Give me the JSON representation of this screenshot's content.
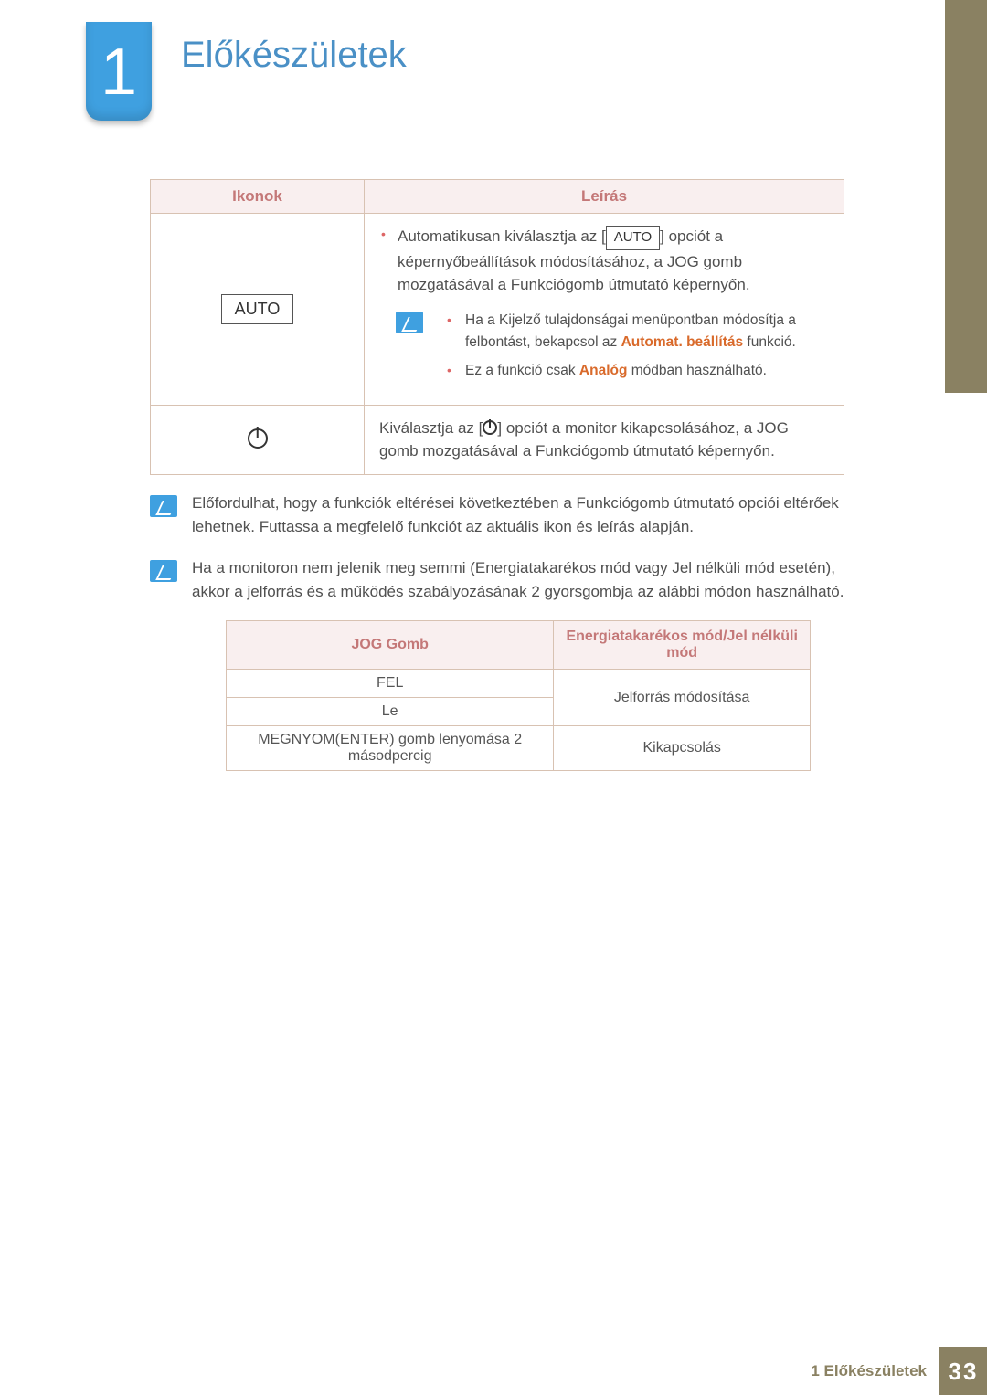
{
  "chapter": {
    "number": "1",
    "title": "Előkészületek"
  },
  "table1": {
    "headers": {
      "icons": "Ikonok",
      "desc": "Leírás"
    },
    "row_auto": {
      "icon_label": "AUTO",
      "main_before": "Automatikusan kiválasztja az [",
      "main_tag": "AUTO",
      "main_after": "] opciót a képernyőbeállítások módosításához, a JOG gomb mozgatásával a Funkciógomb útmutató képernyőn.",
      "sub1_before": "Ha a Kijelző tulajdonságai menüpontban módosítja a felbontást, bekapcsol az ",
      "sub1_hl": "Automat. beállítás",
      "sub1_after": " funkció.",
      "sub2_before": "Ez a funkció csak ",
      "sub2_hl": "Analóg",
      "sub2_after": " módban használható."
    },
    "row_power": {
      "before": "Kiválasztja az [",
      "after": "] opciót a monitor kikapcsolásához, a JOG gomb mozgatásával a Funkciógomb útmutató képernyőn."
    }
  },
  "note1": "Előfordulhat, hogy a funkciók eltérései következtében a Funkciógomb útmutató opciói eltérőek lehetnek. Futtassa a megfelelő funkciót az aktuális ikon és leírás alapján.",
  "note2": "Ha a monitoron nem jelenik meg semmi (Energiatakarékos mód vagy Jel nélküli mód esetén), akkor a jelforrás és a működés szabályozásának 2 gyorsgombja az alábbi módon használható.",
  "table2": {
    "headers": {
      "jog": "JOG Gomb",
      "mode": "Energiatakarékos mód/Jel nélküli mód"
    },
    "rows": {
      "up": "FEL",
      "down": "Le",
      "enter": "MEGNYOM(ENTER) gomb lenyomása 2 másodpercig",
      "source": "Jelforrás módosítása",
      "off": "Kikapcsolás"
    }
  },
  "footer": {
    "text": "1 Előkészületek",
    "page": "33"
  }
}
